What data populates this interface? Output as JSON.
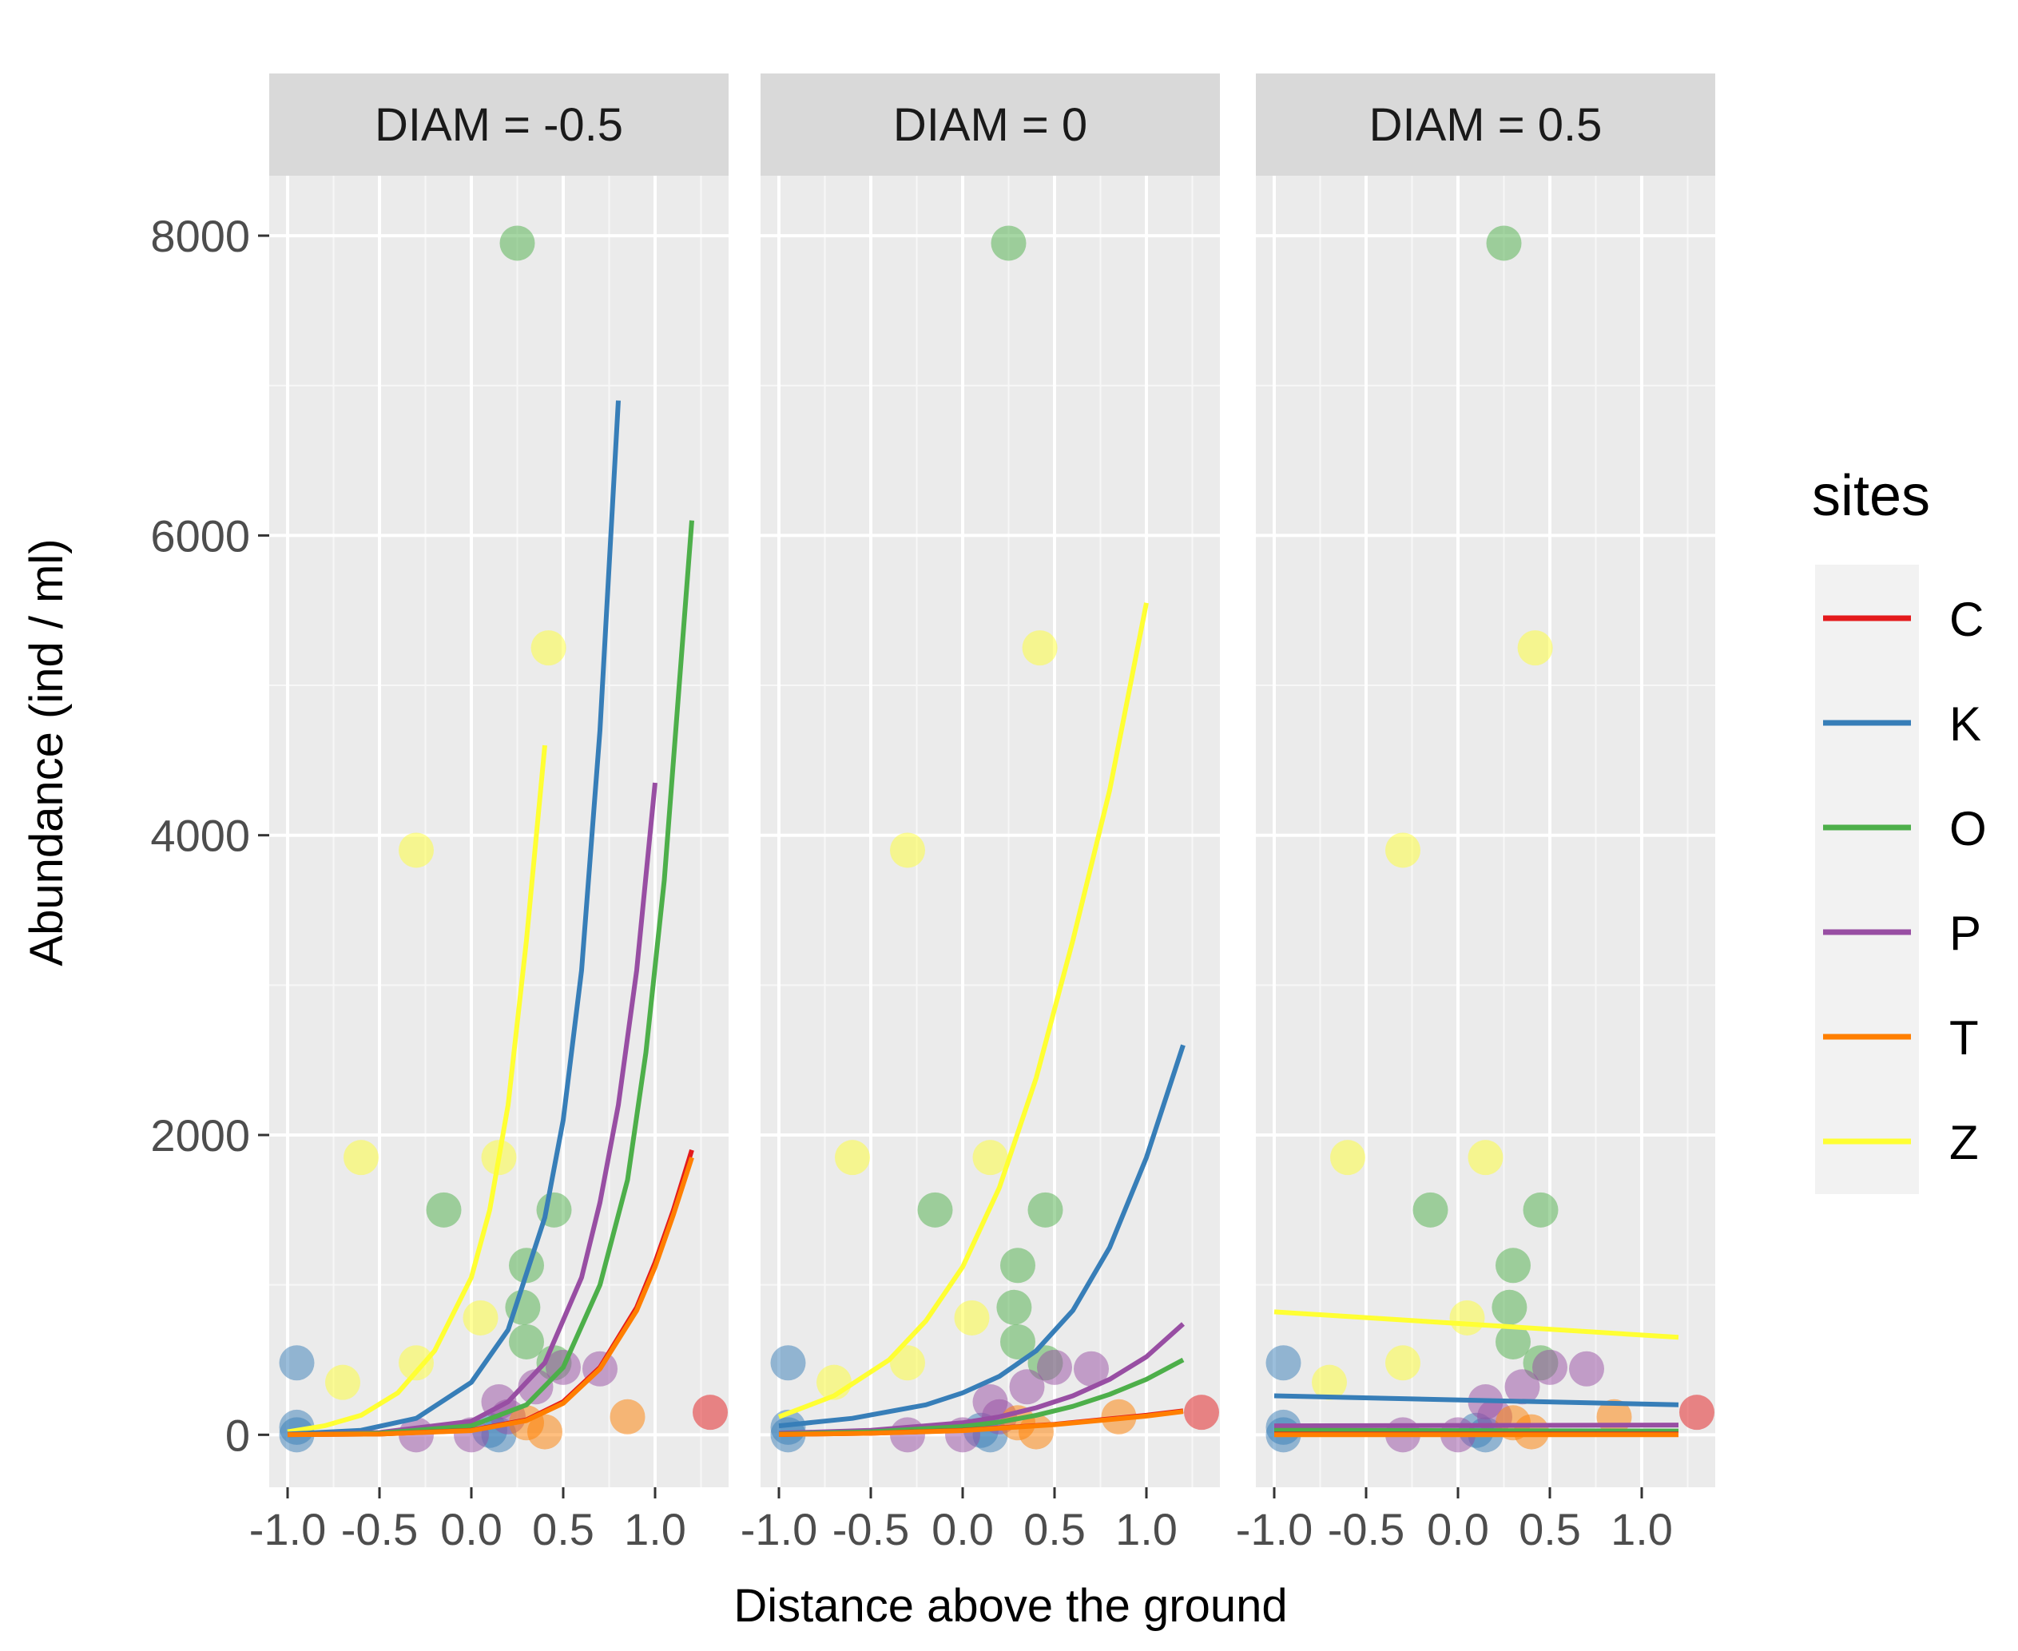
{
  "chart_data": {
    "type": "line",
    "subtype": "faceted line with scatter points",
    "xlabel": "Distance above the ground",
    "ylabel": "Abundance  (ind / ml)",
    "xlim": [
      -1.1,
      1.4
    ],
    "ylim": [
      -350,
      8400
    ],
    "xticks": [
      -1.0,
      -0.5,
      0.0,
      0.5,
      1.0
    ],
    "xtick_labels": [
      "-1.0",
      "-0.5",
      "0.0",
      "0.5",
      "1.0"
    ],
    "yticks": [
      0,
      2000,
      4000,
      6000,
      8000
    ],
    "ytick_labels": [
      "0",
      "2000",
      "4000",
      "6000",
      "8000"
    ],
    "grid": true,
    "legend": {
      "title": "sites",
      "position": "right",
      "entries": [
        {
          "label": "C",
          "color": "#e41a1c"
        },
        {
          "label": "K",
          "color": "#377eb8"
        },
        {
          "label": "O",
          "color": "#4daf4a"
        },
        {
          "label": "P",
          "color": "#984ea3"
        },
        {
          "label": "T",
          "color": "#ff7f00"
        },
        {
          "label": "Z",
          "color": "#ffff33"
        }
      ]
    },
    "points": [
      {
        "site": "Z",
        "x": -0.6,
        "y": 1850
      },
      {
        "site": "Z",
        "x": 0.15,
        "y": 1850
      },
      {
        "site": "Z",
        "x": -0.3,
        "y": 3900
      },
      {
        "site": "Z",
        "x": 0.42,
        "y": 5250
      },
      {
        "site": "Z",
        "x": -0.7,
        "y": 350
      },
      {
        "site": "Z",
        "x": -0.3,
        "y": 480
      },
      {
        "site": "Z",
        "x": 0.05,
        "y": 780
      },
      {
        "site": "O",
        "x": 0.25,
        "y": 7950
      },
      {
        "site": "O",
        "x": -0.15,
        "y": 1500
      },
      {
        "site": "O",
        "x": 0.45,
        "y": 1500
      },
      {
        "site": "O",
        "x": 0.3,
        "y": 1130
      },
      {
        "site": "O",
        "x": 0.28,
        "y": 850
      },
      {
        "site": "O",
        "x": 0.3,
        "y": 620
      },
      {
        "site": "O",
        "x": 0.45,
        "y": 480
      },
      {
        "site": "K",
        "x": -0.95,
        "y": 480
      },
      {
        "site": "K",
        "x": -0.95,
        "y": 50
      },
      {
        "site": "K",
        "x": -0.95,
        "y": 0
      },
      {
        "site": "K",
        "x": 0.1,
        "y": 30
      },
      {
        "site": "K",
        "x": 0.15,
        "y": 0
      },
      {
        "site": "P",
        "x": 0.7,
        "y": 440
      },
      {
        "site": "P",
        "x": 0.5,
        "y": 450
      },
      {
        "site": "P",
        "x": 0.35,
        "y": 320
      },
      {
        "site": "P",
        "x": 0.15,
        "y": 220
      },
      {
        "site": "P",
        "x": 0.0,
        "y": 0
      },
      {
        "site": "P",
        "x": -0.3,
        "y": 0
      },
      {
        "site": "P",
        "x": 0.2,
        "y": 120
      },
      {
        "site": "T",
        "x": 0.85,
        "y": 120
      },
      {
        "site": "T",
        "x": 0.4,
        "y": 20
      },
      {
        "site": "T",
        "x": 0.3,
        "y": 80
      },
      {
        "site": "C",
        "x": 1.3,
        "y": 150
      }
    ],
    "panels": [
      {
        "title": "DIAM = -0.5",
        "series": [
          {
            "name": "Z",
            "x": [
              -1.0,
              -0.8,
              -0.6,
              -0.4,
              -0.2,
              0.0,
              0.1,
              0.2,
              0.3,
              0.4
            ],
            "y": [
              20,
              60,
              130,
              280,
              560,
              1050,
              1500,
              2200,
              3300,
              4600
            ]
          },
          {
            "name": "K",
            "x": [
              -1.0,
              -0.6,
              -0.3,
              0.0,
              0.2,
              0.4,
              0.5,
              0.6,
              0.7,
              0.8
            ],
            "y": [
              5,
              30,
              110,
              350,
              700,
              1450,
              2100,
              3100,
              4700,
              6900
            ]
          },
          {
            "name": "P",
            "x": [
              -1.0,
              -0.5,
              0.0,
              0.2,
              0.4,
              0.6,
              0.7,
              0.8,
              0.9,
              1.0
            ],
            "y": [
              2,
              15,
              90,
              220,
              480,
              1050,
              1550,
              2200,
              3100,
              4350
            ]
          },
          {
            "name": "O",
            "x": [
              -1.0,
              -0.5,
              0.0,
              0.3,
              0.5,
              0.7,
              0.85,
              0.95,
              1.05,
              1.2
            ],
            "y": [
              1,
              10,
              60,
              200,
              450,
              1000,
              1700,
              2550,
              3700,
              6100
            ]
          },
          {
            "name": "C",
            "x": [
              -1.0,
              -0.5,
              0.0,
              0.3,
              0.5,
              0.7,
              0.9,
              1.0,
              1.1,
              1.2
            ],
            "y": [
              1,
              5,
              30,
              100,
              220,
              450,
              850,
              1150,
              1500,
              1900
            ]
          },
          {
            "name": "T",
            "x": [
              -1.0,
              -0.5,
              0.0,
              0.3,
              0.5,
              0.7,
              0.9,
              1.0,
              1.1,
              1.2
            ],
            "y": [
              1,
              5,
              28,
              95,
              210,
              440,
              830,
              1120,
              1470,
              1850
            ]
          }
        ]
      },
      {
        "title": "DIAM = 0",
        "series": [
          {
            "name": "Z",
            "x": [
              -1.0,
              -0.7,
              -0.4,
              -0.2,
              0.0,
              0.2,
              0.4,
              0.6,
              0.8,
              1.0
            ],
            "y": [
              120,
              260,
              500,
              760,
              1120,
              1650,
              2380,
              3300,
              4300,
              5550
            ]
          },
          {
            "name": "K",
            "x": [
              -1.0,
              -0.6,
              -0.2,
              0.0,
              0.2,
              0.4,
              0.6,
              0.8,
              1.0,
              1.2
            ],
            "y": [
              60,
              110,
              200,
              280,
              390,
              560,
              830,
              1250,
              1850,
              2600
            ]
          },
          {
            "name": "P",
            "x": [
              -1.0,
              -0.5,
              0.0,
              0.2,
              0.4,
              0.6,
              0.8,
              1.0,
              1.2
            ],
            "y": [
              10,
              30,
              80,
              120,
              180,
              260,
              370,
              520,
              740
            ]
          },
          {
            "name": "O",
            "x": [
              -1.0,
              -0.5,
              0.0,
              0.2,
              0.4,
              0.6,
              0.8,
              1.0,
              1.2
            ],
            "y": [
              5,
              20,
              55,
              85,
              130,
              190,
              270,
              370,
              500
            ]
          },
          {
            "name": "C",
            "x": [
              -1.0,
              -0.5,
              0.0,
              0.5,
              1.0,
              1.2
            ],
            "y": [
              2,
              10,
              30,
              70,
              130,
              160
            ]
          },
          {
            "name": "T",
            "x": [
              -1.0,
              -0.5,
              0.0,
              0.5,
              1.0,
              1.2
            ],
            "y": [
              2,
              10,
              28,
              68,
              125,
              155
            ]
          }
        ]
      },
      {
        "title": "DIAM = 0.5",
        "series": [
          {
            "name": "Z",
            "x": [
              -1.0,
              1.2
            ],
            "y": [
              820,
              650
            ]
          },
          {
            "name": "K",
            "x": [
              -1.0,
              1.2
            ],
            "y": [
              260,
              200
            ]
          },
          {
            "name": "P",
            "x": [
              -1.0,
              1.2
            ],
            "y": [
              60,
              65
            ]
          },
          {
            "name": "O",
            "x": [
              -1.0,
              1.2
            ],
            "y": [
              30,
              25
            ]
          },
          {
            "name": "C",
            "x": [
              -1.0,
              1.2
            ],
            "y": [
              5,
              5
            ]
          },
          {
            "name": "T",
            "x": [
              -1.0,
              1.2
            ],
            "y": [
              0,
              0
            ]
          }
        ]
      }
    ]
  }
}
